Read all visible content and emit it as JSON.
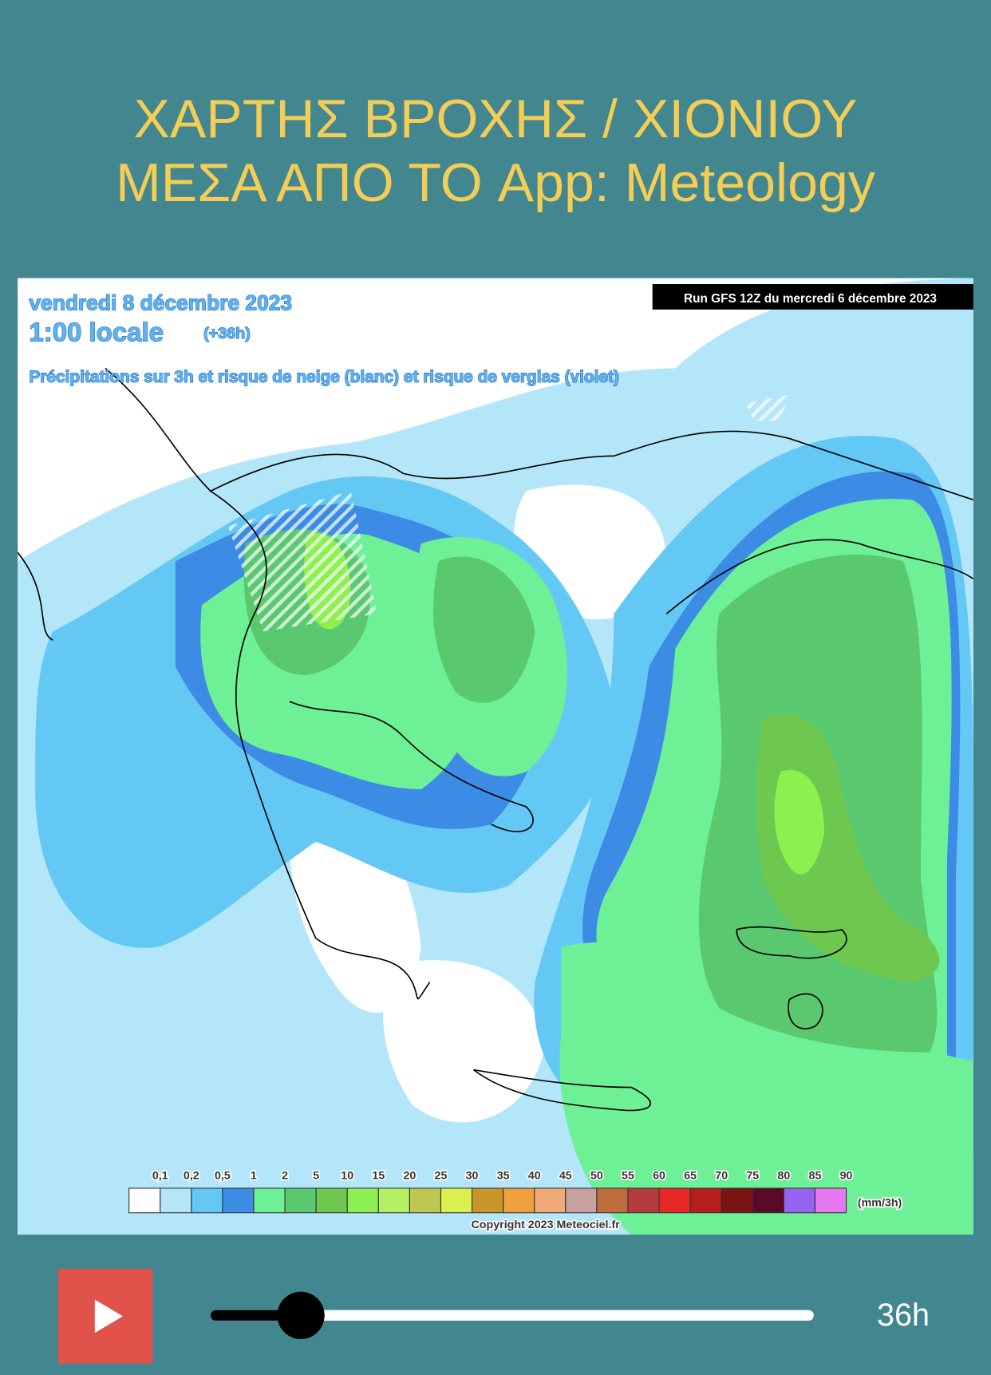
{
  "header": {
    "title_lines": [
      "ΧΑΡΤΗΣ ΒΡΟΧΗΣ / ΧΙΟΝΙΟΥ",
      "ΜΕΣΑ ΑΠΟ ΤΟ App: Meteology"
    ]
  },
  "map": {
    "date": "vendredi 8 décembre 2023",
    "time": "1:00 locale",
    "offset": "(+36h)",
    "description": "Précipitations sur 3h et risque de neige (blanc) et risque de verglas (violet)",
    "run": "Run GFS 12Z du mercredi 6 décembre 2023",
    "legend": {
      "labels": [
        "0,1",
        "0,2",
        "0,5",
        "1",
        "2",
        "5",
        "10",
        "15",
        "20",
        "25",
        "30",
        "35",
        "40",
        "45",
        "50",
        "55",
        "60",
        "65",
        "70",
        "75",
        "80",
        "85",
        "90"
      ],
      "colors": [
        "#ffffff",
        "#b4e6fa",
        "#64c8f5",
        "#3c8ce6",
        "#6ef096",
        "#5ac86e",
        "#6ec850",
        "#8cf050",
        "#b4f064",
        "#bec850",
        "#dcf050",
        "#c89628",
        "#f0a03c",
        "#f0aa78",
        "#c8a0a0",
        "#be6e3c",
        "#b43c3c",
        "#e62828",
        "#b41e1e",
        "#781414",
        "#5a0a28",
        "#9664f0",
        "#e678f0"
      ],
      "unit": "(mm/3h)"
    },
    "copyright": "Copyright 2023 Meteociel.fr"
  },
  "player": {
    "time_label": "36h"
  }
}
